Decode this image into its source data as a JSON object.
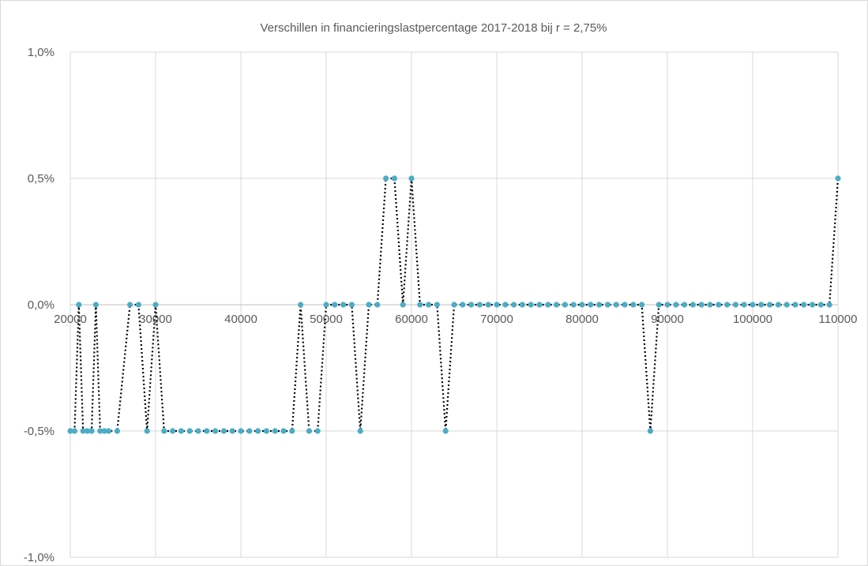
{
  "chart_data": {
    "type": "scatter",
    "title": "Verschillen in financieringslastpercentage 2017-2018 bij r = 2,75%",
    "xlabel": "",
    "ylabel": "",
    "xlim": [
      20000,
      110000
    ],
    "ylim": [
      -0.01,
      0.01
    ],
    "x_ticks": [
      20000,
      30000,
      40000,
      50000,
      60000,
      70000,
      80000,
      90000,
      100000,
      110000
    ],
    "x_tick_labels": [
      "20000",
      "30000",
      "40000",
      "50000",
      "60000",
      "70000",
      "80000",
      "90000",
      "100000",
      "110000"
    ],
    "y_ticks": [
      0.01,
      0.005,
      0,
      -0.005,
      -0.01
    ],
    "y_tick_labels": [
      "1,0%",
      "0,5%",
      "0,0%",
      "-0,5%",
      "-1,0%"
    ],
    "grid": true,
    "legend": "none",
    "series": [
      {
        "marker_color": "#4bacc6",
        "line_color": "#000000",
        "line_style": "dotted",
        "points": [
          [
            20000,
            -0.005
          ],
          [
            20500,
            -0.005
          ],
          [
            21000,
            0
          ],
          [
            21500,
            -0.005
          ],
          [
            22000,
            -0.005
          ],
          [
            22500,
            -0.005
          ],
          [
            23000,
            0
          ],
          [
            23500,
            -0.005
          ],
          [
            24000,
            -0.005
          ],
          [
            24500,
            -0.005
          ],
          [
            25500,
            -0.005
          ],
          [
            27000,
            0
          ],
          [
            28000,
            0
          ],
          [
            29000,
            -0.005
          ],
          [
            30000,
            0
          ],
          [
            31000,
            -0.005
          ],
          [
            32000,
            -0.005
          ],
          [
            33000,
            -0.005
          ],
          [
            34000,
            -0.005
          ],
          [
            35000,
            -0.005
          ],
          [
            36000,
            -0.005
          ],
          [
            37000,
            -0.005
          ],
          [
            38000,
            -0.005
          ],
          [
            39000,
            -0.005
          ],
          [
            40000,
            -0.005
          ],
          [
            41000,
            -0.005
          ],
          [
            42000,
            -0.005
          ],
          [
            43000,
            -0.005
          ],
          [
            44000,
            -0.005
          ],
          [
            45000,
            -0.005
          ],
          [
            46000,
            -0.005
          ],
          [
            47000,
            0
          ],
          [
            48000,
            -0.005
          ],
          [
            49000,
            -0.005
          ],
          [
            50000,
            0
          ],
          [
            51000,
            0
          ],
          [
            52000,
            0
          ],
          [
            53000,
            0
          ],
          [
            54000,
            -0.005
          ],
          [
            55000,
            0
          ],
          [
            56000,
            0
          ],
          [
            57000,
            0.005
          ],
          [
            58000,
            0.005
          ],
          [
            59000,
            0
          ],
          [
            60000,
            0.005
          ],
          [
            61000,
            0
          ],
          [
            62000,
            0
          ],
          [
            63000,
            0
          ],
          [
            64000,
            -0.005
          ],
          [
            65000,
            0
          ],
          [
            66000,
            0
          ],
          [
            67000,
            0
          ],
          [
            68000,
            0
          ],
          [
            69000,
            0
          ],
          [
            70000,
            0
          ],
          [
            71000,
            0
          ],
          [
            72000,
            0
          ],
          [
            73000,
            0
          ],
          [
            74000,
            0
          ],
          [
            75000,
            0
          ],
          [
            76000,
            0
          ],
          [
            77000,
            0
          ],
          [
            78000,
            0
          ],
          [
            79000,
            0
          ],
          [
            80000,
            0
          ],
          [
            81000,
            0
          ],
          [
            82000,
            0
          ],
          [
            83000,
            0
          ],
          [
            84000,
            0
          ],
          [
            85000,
            0
          ],
          [
            86000,
            0
          ],
          [
            87000,
            0
          ],
          [
            88000,
            -0.005
          ],
          [
            89000,
            0
          ],
          [
            90000,
            0
          ],
          [
            91000,
            0
          ],
          [
            92000,
            0
          ],
          [
            93000,
            0
          ],
          [
            94000,
            0
          ],
          [
            95000,
            0
          ],
          [
            96000,
            0
          ],
          [
            97000,
            0
          ],
          [
            98000,
            0
          ],
          [
            99000,
            0
          ],
          [
            100000,
            0
          ],
          [
            101000,
            0
          ],
          [
            102000,
            0
          ],
          [
            103000,
            0
          ],
          [
            104000,
            0
          ],
          [
            105000,
            0
          ],
          [
            106000,
            0
          ],
          [
            107000,
            0
          ],
          [
            108000,
            0
          ],
          [
            109000,
            0
          ],
          [
            110000,
            0.005
          ]
        ]
      }
    ]
  }
}
